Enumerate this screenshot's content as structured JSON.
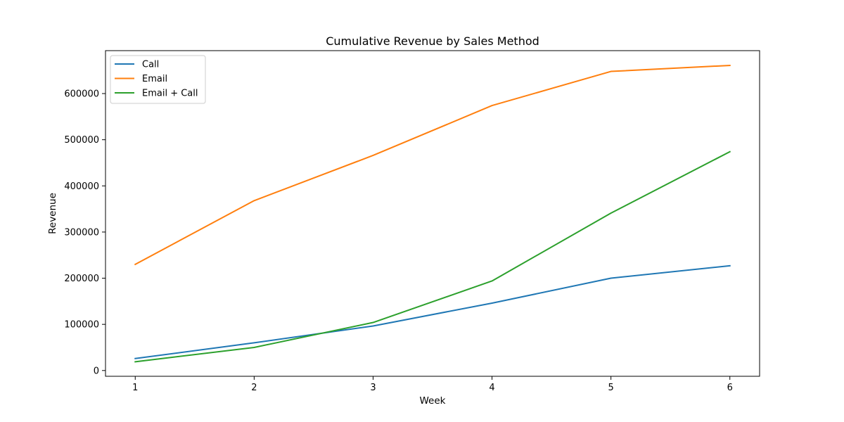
{
  "chart_data": {
    "type": "line",
    "title": "Cumulative Revenue by Sales Method",
    "xlabel": "Week",
    "ylabel": "Revenue",
    "x": [
      1,
      2,
      3,
      4,
      5,
      6
    ],
    "xticks": [
      "1",
      "2",
      "3",
      "4",
      "5",
      "6"
    ],
    "yticks": [
      0,
      100000,
      200000,
      300000,
      400000,
      500000,
      600000
    ],
    "ytick_labels": [
      "0",
      "100000",
      "200000",
      "300000",
      "400000",
      "500000",
      "600000"
    ],
    "xlim": [
      0.75,
      6.25
    ],
    "ylim": [
      -12500,
      693000
    ],
    "grid": false,
    "legend_position": "top-left",
    "series": [
      {
        "name": "Call",
        "color": "#1f77b4",
        "values": [
          26000,
          60000,
          96500,
          146000,
          200000,
          227000
        ]
      },
      {
        "name": "Email",
        "color": "#ff7f0e",
        "values": [
          230000,
          368000,
          466000,
          574000,
          648000,
          661000
        ]
      },
      {
        "name": "Email + Call",
        "color": "#2ca02c",
        "values": [
          19000,
          50000,
          104000,
          194000,
          341000,
          474000
        ]
      }
    ]
  }
}
